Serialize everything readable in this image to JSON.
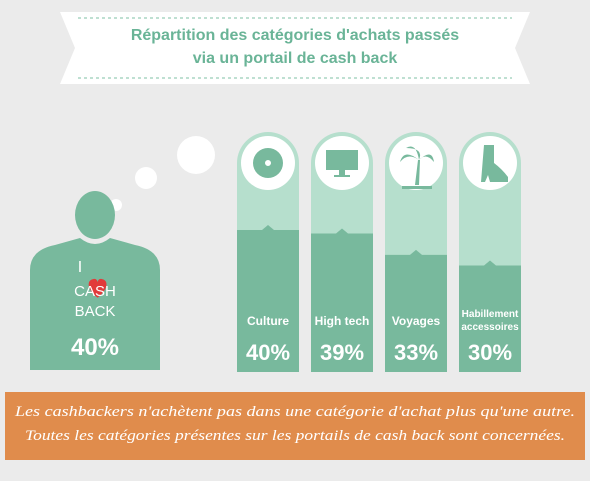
{
  "chart_data": {
    "type": "bar",
    "title": [
      "Répartition des catégories d'achats passés",
      "via un portail de cash back"
    ],
    "categories": [
      "Culture",
      "High tech",
      "Voyages",
      "Habillement accessoires"
    ],
    "values": [
      40,
      39,
      33,
      30
    ],
    "value_labels": [
      "40%",
      "39%",
      "33%",
      "30%"
    ],
    "color": "#78b99d"
  },
  "figure": {
    "top": "I",
    "lines": [
      "CASH",
      "BACK"
    ],
    "label": "40%"
  },
  "footer": [
    "Les cashbackers n'achètent pas dans une catégorie d'achat plus qu'une autre.",
    "Toutes les catégories présentes sur les portails de cash back sont concernées."
  ]
}
